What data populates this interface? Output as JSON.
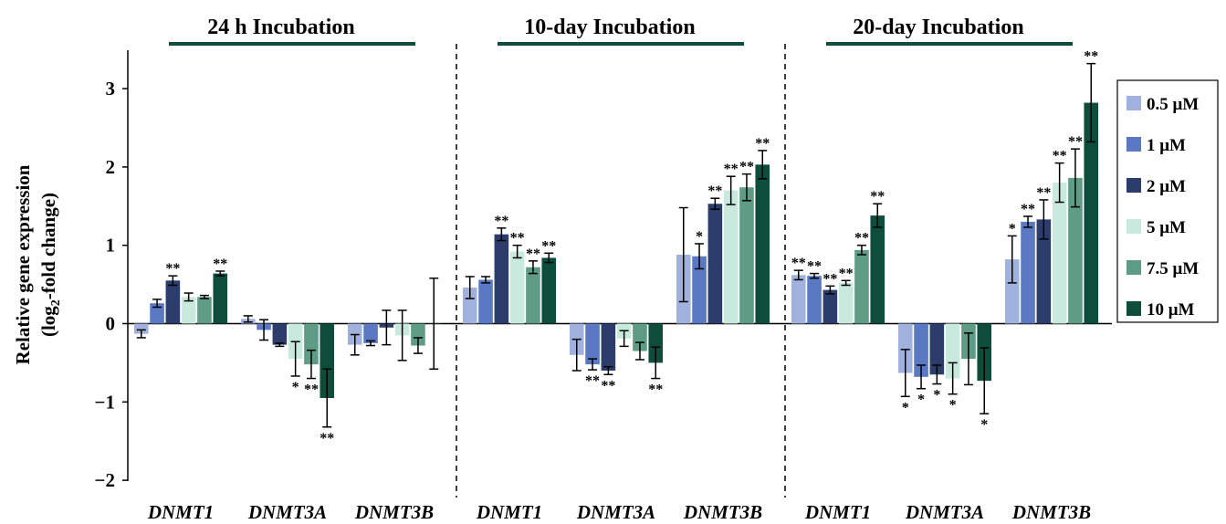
{
  "chart_data": {
    "type": "bar",
    "ylabel_line1": "Relative gene expression",
    "ylabel_prefix": "(log",
    "ylabel_sub": "2",
    "ylabel_suffix": "-fold change)",
    "ylim": [
      -2,
      3.5
    ],
    "yticks": [
      {
        "value": 3,
        "label": "3"
      },
      {
        "value": 2,
        "label": "2"
      },
      {
        "value": 1,
        "label": "1"
      },
      {
        "value": 0,
        "label": "0"
      },
      {
        "value": -1,
        "label": "−1"
      },
      {
        "value": -2,
        "label": "−2"
      }
    ],
    "legend_position": "right",
    "series": [
      {
        "name": "0.5 μM",
        "color": "#9fb1dc"
      },
      {
        "name": "1 μM",
        "color": "#5b79c3"
      },
      {
        "name": "2 μM",
        "color": "#2c3d6b"
      },
      {
        "name": "5 μM",
        "color": "#c8eade"
      },
      {
        "name": "7.5 μM",
        "color": "#5f9c85"
      },
      {
        "name": "10 μM",
        "color": "#0e4d3c"
      }
    ],
    "panels": [
      {
        "title": "24 h Incubation",
        "groups": [
          {
            "gene": "DNMT1",
            "values": [
              -0.13,
              0.26,
              0.55,
              0.34,
              0.34,
              0.64
            ],
            "errors": [
              0.05,
              0.05,
              0.06,
              0.05,
              0.02,
              0.03
            ],
            "sig": [
              "",
              "",
              "**",
              "",
              "",
              "**"
            ]
          },
          {
            "gene": "DNMT3A",
            "values": [
              0.06,
              -0.08,
              -0.27,
              -0.45,
              -0.52,
              -0.95
            ],
            "errors": [
              0.04,
              0.13,
              0.02,
              0.22,
              0.18,
              0.37
            ],
            "sig": [
              "",
              "",
              "",
              "*",
              "**",
              "**"
            ]
          },
          {
            "gene": "DNMT3B",
            "values": [
              -0.27,
              -0.25,
              -0.05,
              -0.15,
              -0.28,
              0.0
            ],
            "errors": [
              0.13,
              0.03,
              0.22,
              0.32,
              0.1,
              0.58
            ],
            "sig": [
              "",
              "",
              "",
              "",
              "",
              ""
            ]
          }
        ]
      },
      {
        "title": "10-day Incubation",
        "groups": [
          {
            "gene": "DNMT1",
            "values": [
              0.46,
              0.56,
              1.14,
              0.92,
              0.72,
              0.84
            ],
            "errors": [
              0.14,
              0.04,
              0.08,
              0.08,
              0.08,
              0.06
            ],
            "sig": [
              "",
              "",
              "**",
              "**",
              "**",
              "**"
            ]
          },
          {
            "gene": "DNMT3A",
            "values": [
              -0.4,
              -0.52,
              -0.6,
              -0.19,
              -0.35,
              -0.5
            ],
            "errors": [
              0.2,
              0.07,
              0.05,
              0.1,
              0.11,
              0.2
            ],
            "sig": [
              "",
              "**",
              "**",
              "",
              "",
              "**"
            ]
          },
          {
            "gene": "DNMT3B",
            "values": [
              0.88,
              0.86,
              1.53,
              1.7,
              1.74,
              2.03
            ],
            "errors": [
              0.6,
              0.16,
              0.07,
              0.18,
              0.17,
              0.18
            ],
            "sig": [
              "",
              "*",
              "**",
              "**",
              "**",
              "**"
            ]
          }
        ]
      },
      {
        "title": "20-day Incubation",
        "groups": [
          {
            "gene": "DNMT1",
            "values": [
              0.62,
              0.61,
              0.43,
              0.52,
              0.94,
              1.38
            ],
            "errors": [
              0.06,
              0.03,
              0.05,
              0.03,
              0.06,
              0.15
            ],
            "sig": [
              "**",
              "**",
              "**",
              "**",
              "**",
              "**"
            ]
          },
          {
            "gene": "DNMT3A",
            "values": [
              -0.63,
              -0.68,
              -0.65,
              -0.7,
              -0.45,
              -0.73
            ],
            "errors": [
              0.3,
              0.15,
              0.12,
              0.2,
              0.33,
              0.42
            ],
            "sig": [
              "*",
              "*",
              "*",
              "*",
              "",
              "*"
            ]
          },
          {
            "gene": "DNMT3B",
            "values": [
              0.82,
              1.3,
              1.33,
              1.8,
              1.86,
              2.82
            ],
            "errors": [
              0.3,
              0.07,
              0.25,
              0.25,
              0.37,
              0.5
            ],
            "sig": [
              "*",
              "**",
              "**",
              "**",
              "**",
              "**"
            ]
          }
        ]
      }
    ]
  }
}
